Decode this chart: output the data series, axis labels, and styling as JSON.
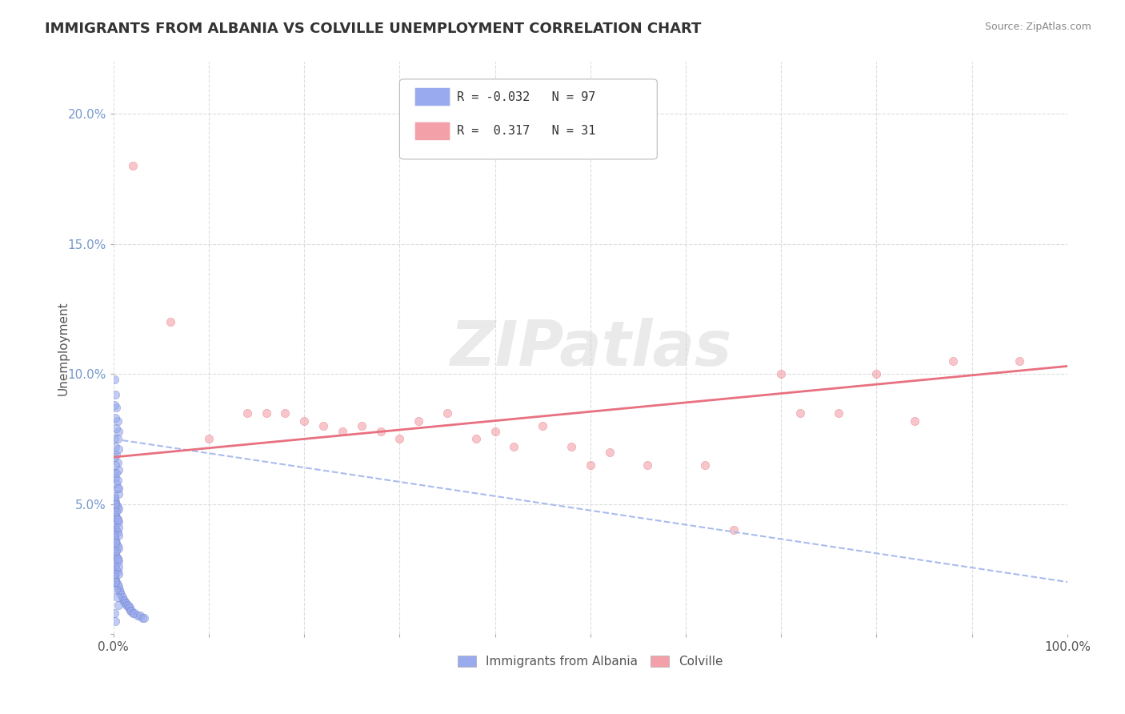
{
  "title": "IMMIGRANTS FROM ALBANIA VS COLVILLE UNEMPLOYMENT CORRELATION CHART",
  "source": "Source: ZipAtlas.com",
  "ylabel": "Unemployment",
  "xlim": [
    0,
    1.0
  ],
  "ylim": [
    0.0,
    0.22
  ],
  "xticks": [
    0.0,
    0.1,
    0.2,
    0.3,
    0.4,
    0.5,
    0.6,
    0.7,
    0.8,
    0.9,
    1.0
  ],
  "xticklabels_show": [
    "0.0%",
    "",
    "",
    "",
    "",
    "",
    "",
    "",
    "",
    "",
    "100.0%"
  ],
  "yticks": [
    0.0,
    0.05,
    0.1,
    0.15,
    0.2
  ],
  "yticklabels": [
    "",
    "5.0%",
    "10.0%",
    "15.0%",
    "20.0%"
  ],
  "legend_entries": [
    {
      "label": "R = -0.032   N = 97",
      "color": "#99aaee"
    },
    {
      "label": "R =  0.317   N = 31",
      "color": "#f4a0a8"
    }
  ],
  "series1_color": "#99aaee",
  "series2_color": "#f4a0a8",
  "series1_edgecolor": "#7788cc",
  "series2_edgecolor": "#e08090",
  "series1_alpha": 0.6,
  "series2_alpha": 0.6,
  "series1_size": 55,
  "series2_size": 55,
  "trendline1_color": "#aabbee",
  "trendline1_style": "--",
  "trendline2_color": "#e87080",
  "trendline2_style": "-",
  "background_color": "#ffffff",
  "grid_color": "#dddddd",
  "watermark": "ZIPatlas",
  "watermark_color": "#cccccc",
  "yaxis_color": "#7799cc",
  "series1_x": [
    0.001,
    0.002,
    0.003,
    0.004,
    0.005,
    0.001,
    0.002,
    0.003,
    0.004,
    0.005,
    0.001,
    0.002,
    0.003,
    0.004,
    0.005,
    0.001,
    0.002,
    0.003,
    0.004,
    0.005,
    0.001,
    0.002,
    0.003,
    0.004,
    0.005,
    0.001,
    0.002,
    0.003,
    0.004,
    0.005,
    0.001,
    0.002,
    0.003,
    0.004,
    0.005,
    0.001,
    0.002,
    0.003,
    0.004,
    0.005,
    0.001,
    0.002,
    0.003,
    0.004,
    0.005,
    0.001,
    0.002,
    0.003,
    0.004,
    0.005,
    0.006,
    0.007,
    0.008,
    0.009,
    0.01,
    0.011,
    0.012,
    0.013,
    0.014,
    0.015,
    0.016,
    0.017,
    0.018,
    0.019,
    0.02,
    0.022,
    0.025,
    0.028,
    0.03,
    0.032,
    0.001,
    0.002,
    0.003,
    0.004,
    0.005,
    0.001,
    0.002,
    0.003,
    0.004,
    0.005,
    0.001,
    0.002,
    0.003,
    0.004,
    0.005,
    0.001,
    0.002,
    0.003,
    0.004,
    0.005,
    0.001,
    0.002,
    0.003,
    0.004,
    0.005,
    0.001,
    0.002
  ],
  "series1_y": [
    0.098,
    0.092,
    0.087,
    0.082,
    0.078,
    0.075,
    0.072,
    0.069,
    0.066,
    0.063,
    0.062,
    0.06,
    0.058,
    0.056,
    0.054,
    0.052,
    0.051,
    0.05,
    0.049,
    0.048,
    0.047,
    0.046,
    0.045,
    0.044,
    0.043,
    0.042,
    0.041,
    0.04,
    0.039,
    0.038,
    0.037,
    0.036,
    0.035,
    0.034,
    0.033,
    0.032,
    0.031,
    0.03,
    0.029,
    0.028,
    0.027,
    0.026,
    0.025,
    0.024,
    0.023,
    0.022,
    0.021,
    0.02,
    0.019,
    0.018,
    0.017,
    0.016,
    0.015,
    0.014,
    0.013,
    0.013,
    0.012,
    0.012,
    0.011,
    0.011,
    0.01,
    0.01,
    0.009,
    0.009,
    0.008,
    0.008,
    0.007,
    0.007,
    0.006,
    0.006,
    0.088,
    0.083,
    0.079,
    0.075,
    0.071,
    0.068,
    0.065,
    0.062,
    0.059,
    0.056,
    0.053,
    0.05,
    0.047,
    0.044,
    0.041,
    0.038,
    0.035,
    0.032,
    0.029,
    0.026,
    0.023,
    0.02,
    0.017,
    0.014,
    0.011,
    0.008,
    0.005
  ],
  "series2_x": [
    0.02,
    0.06,
    0.1,
    0.14,
    0.16,
    0.18,
    0.2,
    0.22,
    0.24,
    0.26,
    0.28,
    0.3,
    0.32,
    0.35,
    0.38,
    0.4,
    0.42,
    0.45,
    0.48,
    0.5,
    0.52,
    0.56,
    0.62,
    0.65,
    0.7,
    0.72,
    0.76,
    0.8,
    0.84,
    0.88,
    0.95
  ],
  "series2_y": [
    0.18,
    0.12,
    0.075,
    0.085,
    0.085,
    0.085,
    0.082,
    0.08,
    0.078,
    0.08,
    0.078,
    0.075,
    0.082,
    0.085,
    0.075,
    0.078,
    0.072,
    0.08,
    0.072,
    0.065,
    0.07,
    0.065,
    0.065,
    0.04,
    0.1,
    0.085,
    0.085,
    0.1,
    0.082,
    0.105,
    0.105
  ],
  "trendline1_x0": 0.0,
  "trendline1_x1": 1.0,
  "trendline1_y0": 0.075,
  "trendline1_y1": 0.02,
  "trendline2_x0": 0.0,
  "trendline2_x1": 1.0,
  "trendline2_y0": 0.068,
  "trendline2_y1": 0.103,
  "bottom_legend": [
    {
      "label": "Immigrants from Albania",
      "color": "#99aaee"
    },
    {
      "label": "Colville",
      "color": "#f4a0a8"
    }
  ]
}
